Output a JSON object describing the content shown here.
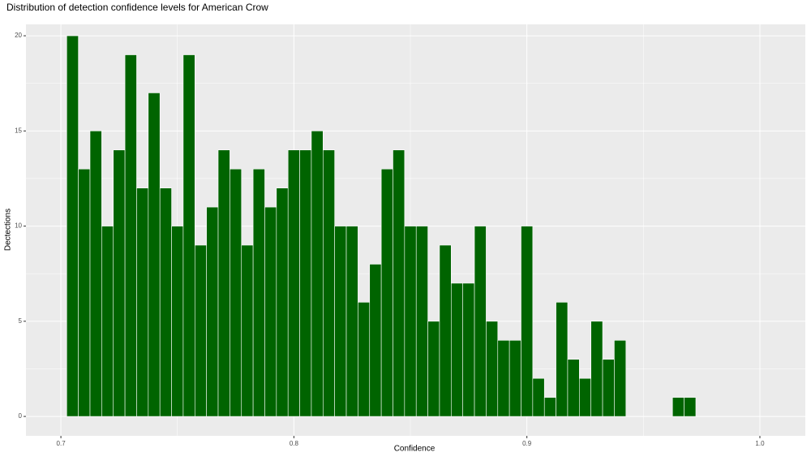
{
  "chart_data": {
    "type": "histogram",
    "title": "Distribution of detection confidence levels for American Crow",
    "x_label": "Confidence",
    "y_label": "Dectections",
    "bins": [
      0.7025,
      0.7075,
      0.7125,
      0.7175,
      0.7225,
      0.7275,
      0.7325,
      0.7375,
      0.7425,
      0.7475,
      0.7525,
      0.7575,
      0.7625,
      0.7675,
      0.7725,
      0.7775,
      0.7825,
      0.7875,
      0.7925,
      0.7975,
      0.8025,
      0.8075,
      0.8125,
      0.8175,
      0.8225,
      0.8275,
      0.8325,
      0.8375,
      0.8425,
      0.8475,
      0.8525,
      0.8575,
      0.8625,
      0.8675,
      0.8725,
      0.8775,
      0.8825,
      0.8875,
      0.8925,
      0.8975,
      0.9025,
      0.9075,
      0.9125,
      0.9175,
      0.9225,
      0.9275,
      0.9325,
      0.9375,
      0.9425,
      0.9475,
      0.9525,
      0.9575,
      0.9625,
      0.9675,
      0.9725
    ],
    "values": [
      20,
      13,
      15,
      10,
      14,
      19,
      12,
      17,
      12,
      10,
      19,
      9,
      11,
      14,
      13,
      9,
      13,
      11,
      12,
      14,
      14,
      15,
      14,
      10,
      10,
      6,
      8,
      13,
      14,
      10,
      10,
      5,
      9,
      7,
      7,
      10,
      5,
      4,
      4,
      10,
      2,
      1,
      6,
      3,
      2,
      5,
      3,
      4,
      0,
      0,
      0,
      0,
      1,
      1
    ],
    "color": "#006400",
    "xlim": [
      0.685,
      1.0195
    ],
    "ylim": [
      -1.02,
      20.6
    ],
    "xticks": [
      0.7,
      0.8,
      0.9,
      {
        "value": 1,
        "label": "1.0"
      }
    ],
    "yticks": [
      0,
      5,
      10,
      15,
      20
    ],
    "grid": true
  }
}
